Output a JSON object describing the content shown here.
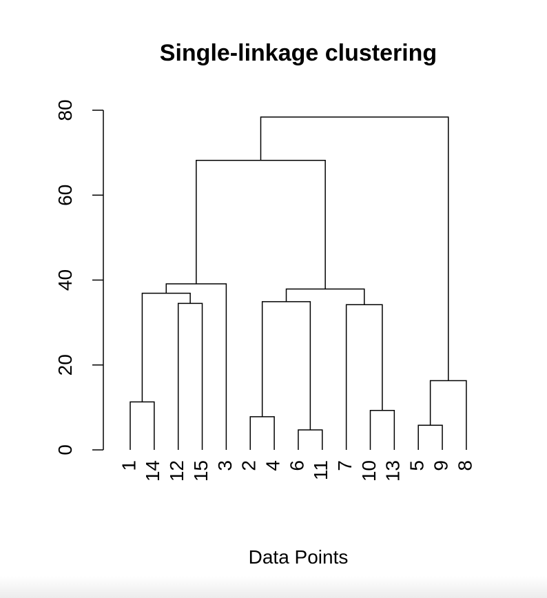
{
  "chart_data": {
    "type": "dendrogram",
    "title": "Single-linkage clustering",
    "xlabel": "Data Points",
    "ylabel": "",
    "ylim": [
      0,
      80
    ],
    "yticks": [
      0,
      20,
      40,
      60,
      80
    ],
    "leaf_order": [
      "1",
      "14",
      "12",
      "15",
      "3",
      "2",
      "4",
      "6",
      "11",
      "7",
      "10",
      "13",
      "5",
      "9",
      "8"
    ],
    "merges": [
      {
        "left": "6",
        "right": "11",
        "height": 4.7
      },
      {
        "left": "5",
        "right": "9",
        "height": 5.8
      },
      {
        "left": "2",
        "right": "4",
        "height": 7.8
      },
      {
        "left": "10",
        "right": "13",
        "height": 9.3
      },
      {
        "left": "1",
        "right": "14",
        "height": 11.3
      },
      {
        "left": "{5,9}",
        "right": "8",
        "height": 16.3
      },
      {
        "left": "7",
        "right": "{10,13}",
        "height": 34.2
      },
      {
        "left": "12",
        "right": "15",
        "height": 34.5
      },
      {
        "left": "{2,4}",
        "right": "{6,11}",
        "height": 34.9
      },
      {
        "left": "{1,14}",
        "right": "{12,15}",
        "height": 36.9
      },
      {
        "left": "{2,4,6,11}",
        "right": "{7,10,13}",
        "height": 37.9
      },
      {
        "left": "{1,14,12,15}",
        "right": "3",
        "height": 39.1
      },
      {
        "left": "{1,14,12,15,3}",
        "right": "{2,4,6,11,7,10,13}",
        "height": 68.2
      },
      {
        "left": "{1,...,13}",
        "right": "{5,9,8}",
        "height": 78.4
      }
    ],
    "line_color": "#000000"
  }
}
